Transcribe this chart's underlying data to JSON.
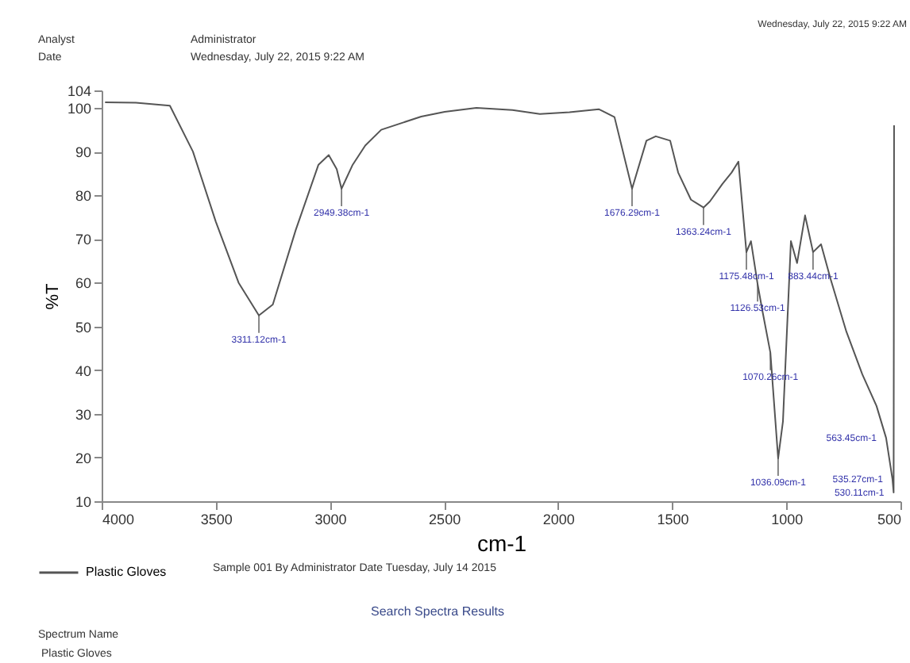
{
  "chart_data": {
    "type": "line",
    "xlabel": "cm-1",
    "ylabel": "%T",
    "xlim": [
      4000,
      500
    ],
    "xticks": [
      4000,
      3500,
      3000,
      2500,
      2000,
      1500,
      1000,
      500
    ],
    "ylim": [
      10,
      104
    ],
    "yticks": [
      10,
      20,
      30,
      40,
      50,
      60,
      70,
      80,
      90,
      100,
      {
        "value": 104,
        "label": "104"
      }
    ],
    "grid": false,
    "legend": "bottom",
    "marker": "none",
    "line_style": "solid",
    "series": [
      {
        "name": "Plastic Gloves",
        "color": "#555555",
        "x": [
          3985,
          3850,
          3701,
          3600,
          3500,
          3400,
          3311,
          3250,
          3150,
          3050,
          3005,
          2970,
          2949,
          2900,
          2845,
          2775,
          2600,
          2497,
          2358,
          2200,
          2080,
          1950,
          1822,
          1753,
          1676,
          1613,
          1572,
          1509,
          1474,
          1418,
          1363,
          1335,
          1280,
          1240,
          1210,
          1175,
          1155,
          1126,
          1105,
          1070,
          1036,
          1015,
          980,
          953,
          918,
          883,
          848,
          806,
          737,
          667,
          605,
          563,
          535,
          530,
          528
        ],
        "values": [
          101.3,
          101.2,
          100.5,
          90,
          74,
          60,
          52.5,
          55,
          72,
          87,
          89.2,
          86,
          81.5,
          87,
          91.4,
          95,
          98,
          99.1,
          100,
          99.5,
          98.6,
          99,
          99.7,
          97.9,
          81.5,
          92.5,
          93.5,
          92.5,
          85.2,
          79.0,
          77.2,
          78.6,
          82.6,
          85.2,
          87.7,
          67,
          69.5,
          59.7,
          53.6,
          44,
          19.8,
          28.2,
          69.5,
          64.5,
          75.4,
          67,
          68.8,
          60.8,
          48.8,
          39,
          31.8,
          24.5,
          15,
          12,
          96
        ]
      }
    ],
    "annotations": [
      "Analyst",
      "Administrator",
      "Date",
      "Wednesday, July 22, 2015 9:22 AM",
      "Wednesday, July 22, 2015 9:22 AM",
      "Sample 001 By Administrator Date Tuesday, July 14 2015",
      "Search Spectra Results",
      "Spectrum Name",
      "Plastic Gloves",
      {
        "text": "3311.12cm-1",
        "x": 3311,
        "y": 52.5
      },
      {
        "text": "2949.38cm-1",
        "x": 2949,
        "y": 81.5
      },
      {
        "text": "1676.29cm-1",
        "x": 1676,
        "y": 81.5
      },
      {
        "text": "1363.24cm-1",
        "x": 1363,
        "y": 77.2
      },
      {
        "text": "1175.48cm-1",
        "x": 1175,
        "y": 67
      },
      {
        "text": "1126.53cm-1",
        "x": 1126,
        "y": 59.7
      },
      {
        "text": "1070.26cm-1",
        "x": 1070,
        "y": 44
      },
      {
        "text": "1036.09cm-1",
        "x": 1036,
        "y": 19.8
      },
      {
        "text": "883.44cm-1",
        "x": 883,
        "y": 67
      },
      {
        "text": "563.45cm-1",
        "x": 563,
        "y": 24.5
      },
      {
        "text": "535.27cm-1",
        "x": 535,
        "y": 15
      },
      {
        "text": "530.11cm-1",
        "x": 530,
        "y": 12
      }
    ]
  }
}
